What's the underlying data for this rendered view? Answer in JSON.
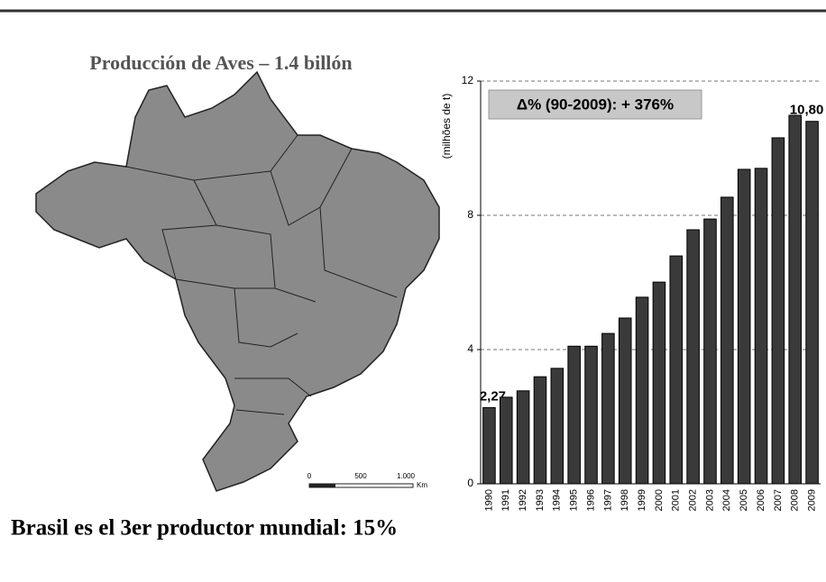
{
  "title": "Producción de  Aves – 1.4 billón",
  "footer": "Brasil es el 3er productor mundial: 15%",
  "map": {
    "scale_labels": [
      "0",
      "500",
      "1.000",
      "Km"
    ]
  },
  "chart_data": {
    "type": "bar",
    "categories": [
      "1990",
      "1991",
      "1992",
      "1993",
      "1994",
      "1995",
      "1996",
      "1997",
      "1998",
      "1999",
      "2000",
      "2001",
      "2002",
      "2003",
      "2004",
      "2005",
      "2006",
      "2007",
      "2008",
      "2009"
    ],
    "values": [
      2.27,
      2.58,
      2.77,
      3.19,
      3.44,
      4.1,
      4.1,
      4.48,
      4.94,
      5.56,
      6.01,
      6.79,
      7.57,
      7.89,
      8.54,
      9.37,
      9.4,
      10.31,
      10.98,
      10.8
    ],
    "value_labels": [
      "2,27",
      null,
      null,
      null,
      null,
      null,
      null,
      null,
      null,
      null,
      null,
      null,
      null,
      null,
      null,
      null,
      null,
      null,
      null,
      "10,80"
    ],
    "color": "#3a3a3a",
    "ylabel": "(milhões de t)",
    "annotation": "Δ% (90-2009):  + 376%",
    "ylim": [
      0,
      12
    ],
    "yticks": [
      0,
      4,
      8,
      12
    ],
    "grid": true
  }
}
